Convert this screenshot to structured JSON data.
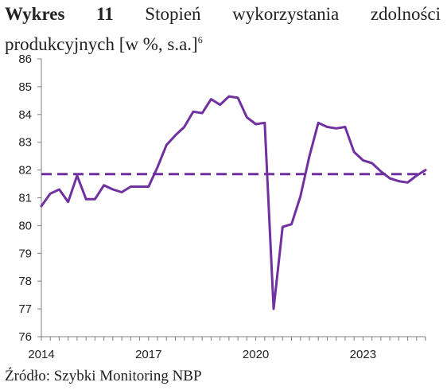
{
  "header": {
    "prefix": "Wykres 11",
    "title": "Stopień wykorzystania zdolności",
    "title_line2": "produkcyjnych [w %, s.a.]",
    "footnote_marker": "6"
  },
  "footer": {
    "source": "Źródło: Szybki Monitoring NBP"
  },
  "chart_data": {
    "type": "line",
    "title": "Stopień wykorzystania zdolności produkcyjnych [w %, s.a.]",
    "xlabel": "",
    "ylabel": "",
    "ylim": [
      76,
      86
    ],
    "xlim": [
      2014.0,
      2024.75
    ],
    "yticks": [
      76,
      77,
      78,
      79,
      80,
      81,
      82,
      83,
      84,
      85,
      86
    ],
    "xticks": [
      2014,
      2017,
      2020,
      2023
    ],
    "grid": false,
    "series": [
      {
        "color": "#7030a0",
        "style": "solid",
        "x": [
          2014.0,
          2014.25,
          2014.5,
          2014.75,
          2015.0,
          2015.25,
          2015.5,
          2015.75,
          2016.0,
          2016.25,
          2016.5,
          2016.75,
          2017.0,
          2017.25,
          2017.5,
          2017.75,
          2018.0,
          2018.25,
          2018.5,
          2018.75,
          2019.0,
          2019.25,
          2019.5,
          2019.75,
          2020.0,
          2020.25,
          2020.5,
          2020.75,
          2021.0,
          2021.25,
          2021.5,
          2021.75,
          2022.0,
          2022.25,
          2022.5,
          2022.75,
          2023.0,
          2023.25,
          2023.5,
          2023.75,
          2024.0,
          2024.25,
          2024.5,
          2024.75
        ],
        "values": [
          80.7,
          81.15,
          81.3,
          80.85,
          81.8,
          80.95,
          80.95,
          81.45,
          81.3,
          81.2,
          81.4,
          81.4,
          81.4,
          82.1,
          82.9,
          83.25,
          83.55,
          84.1,
          84.05,
          84.55,
          84.35,
          84.65,
          84.6,
          83.9,
          83.65,
          83.7,
          77.0,
          79.95,
          80.05,
          81.05,
          82.5,
          83.7,
          83.55,
          83.5,
          83.55,
          82.65,
          82.35,
          82.25,
          81.95,
          81.7,
          81.6,
          81.55,
          81.8,
          82.0
        ]
      },
      {
        "color": "#7030a0",
        "style": "dashed",
        "x": [
          2014.0,
          2024.75
        ],
        "values": [
          81.85,
          81.85
        ]
      }
    ]
  }
}
